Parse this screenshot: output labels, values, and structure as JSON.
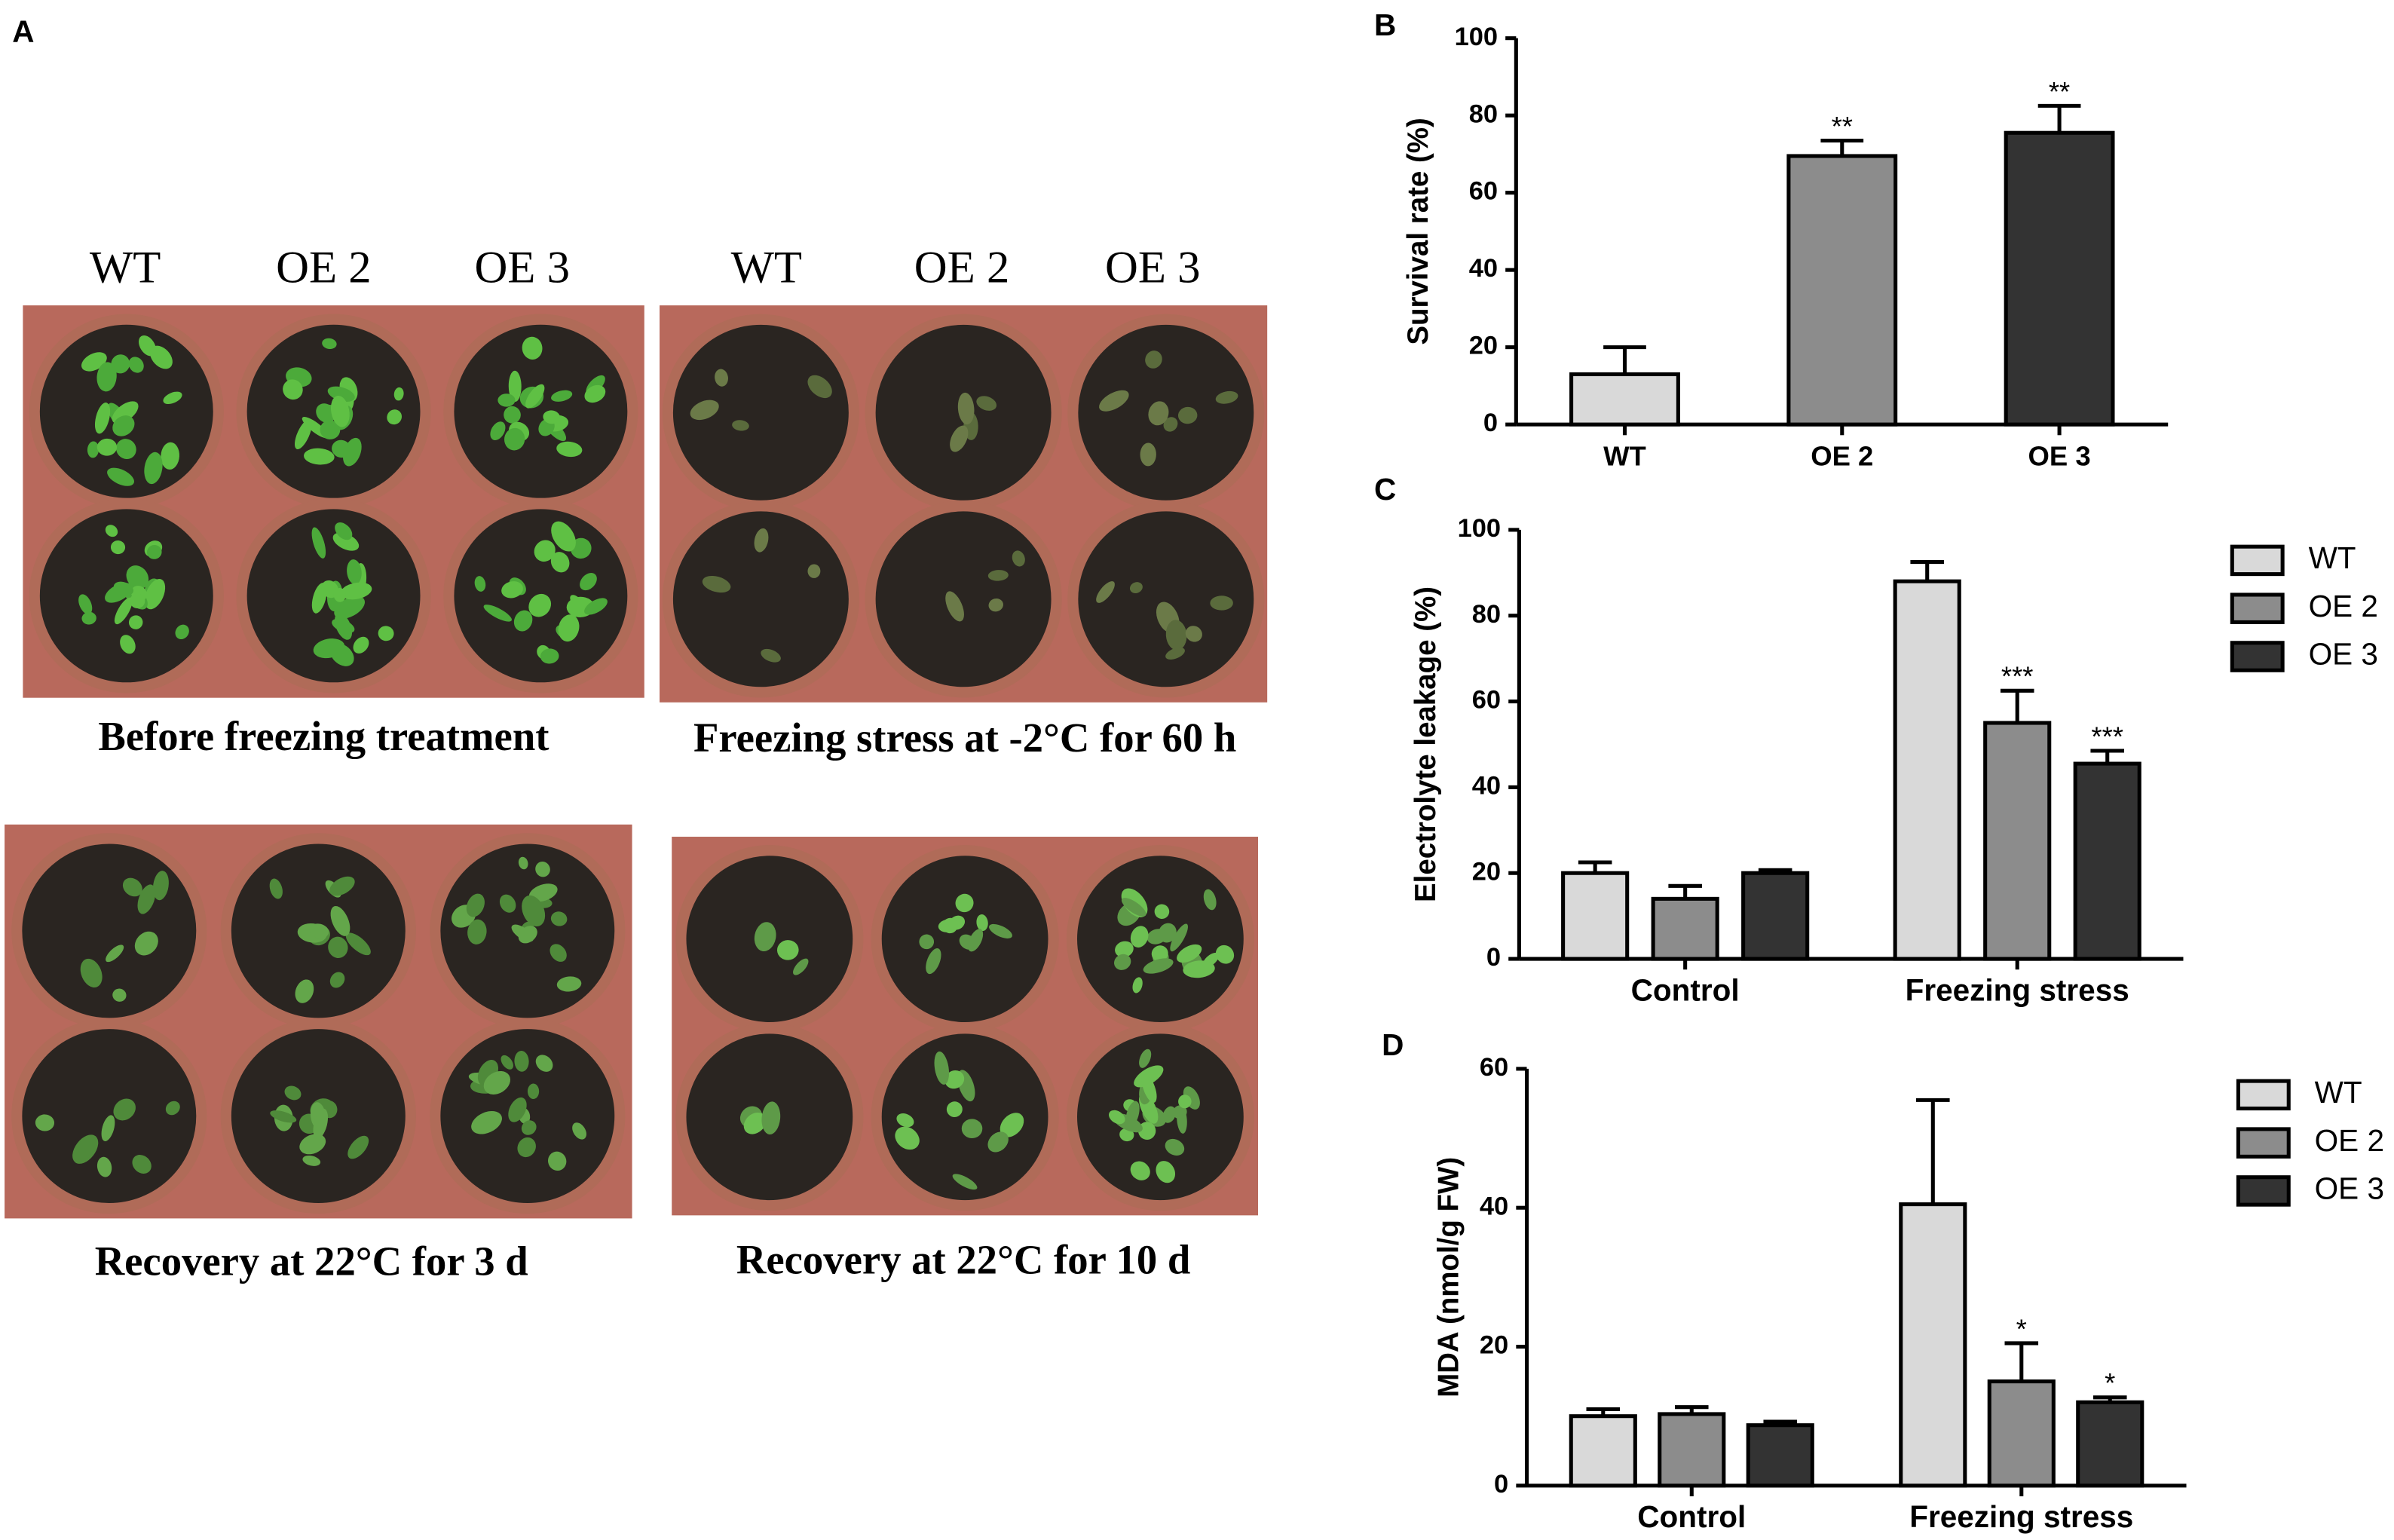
{
  "photo_panel": {
    "panel_label": "A",
    "photos": [
      {
        "columns": [
          "WT",
          "OE 2",
          "OE 3"
        ],
        "caption": "Before freezing treatment"
      },
      {
        "columns": [
          "WT",
          "OE 2",
          "OE 3"
        ],
        "caption": "Freezing stress at -2°C for 60 h"
      },
      {
        "caption": "Recovery at 22°C for 3 d"
      },
      {
        "caption": "Recovery at 22°C for 10 d"
      }
    ]
  },
  "chart_data": [
    {
      "type": "bar",
      "panel_label": "B",
      "y_label": "Survival rate (%)",
      "categories": [
        "WT",
        "OE 2",
        "OE 3"
      ],
      "values": [
        13,
        69.5,
        75.5
      ],
      "errors": [
        7,
        4,
        7
      ],
      "significance": [
        null,
        "**",
        "**"
      ],
      "colors": [
        "#d9d9d9",
        "#8c8c8c",
        "#333333"
      ],
      "ylim": [
        0,
        100
      ],
      "yticks": [
        0,
        20,
        40,
        60,
        80,
        100
      ]
    },
    {
      "type": "grouped_bar",
      "panel_label": "C",
      "y_label": "Electrolyte leakage (%)",
      "categories": [
        "Control",
        "Freezing stress"
      ],
      "series": [
        {
          "name": "WT",
          "color": "#d9d9d9",
          "values": [
            20,
            88
          ],
          "errors": [
            2.5,
            4.5
          ],
          "significance": [
            null,
            null
          ]
        },
        {
          "name": "OE 2",
          "color": "#8c8c8c",
          "values": [
            14,
            55
          ],
          "errors": [
            3,
            7.5
          ],
          "significance": [
            null,
            "***"
          ]
        },
        {
          "name": "OE 3",
          "color": "#333333",
          "values": [
            20,
            45.5
          ],
          "errors": [
            0.7,
            3
          ],
          "significance": [
            null,
            "***"
          ]
        }
      ],
      "ylim": [
        0,
        100
      ],
      "yticks": [
        0,
        20,
        40,
        60,
        80,
        100
      ],
      "legend": "right"
    },
    {
      "type": "grouped_bar",
      "panel_label": "D",
      "y_label": "MDA (nmol/g FW)",
      "categories": [
        "Control",
        "Freezing stress"
      ],
      "series": [
        {
          "name": "WT",
          "color": "#d9d9d9",
          "values": [
            10,
            40.5
          ],
          "errors": [
            1,
            15
          ],
          "significance": [
            null,
            null
          ]
        },
        {
          "name": "OE 2",
          "color": "#8c8c8c",
          "values": [
            10.3,
            15
          ],
          "errors": [
            1,
            5.5
          ],
          "significance": [
            null,
            "*"
          ]
        },
        {
          "name": "OE 3",
          "color": "#333333",
          "values": [
            8.7,
            12
          ],
          "errors": [
            0.5,
            0.7
          ],
          "significance": [
            null,
            "*"
          ]
        }
      ],
      "ylim": [
        0,
        60
      ],
      "yticks": [
        0,
        20,
        40,
        60
      ],
      "legend": "right"
    }
  ]
}
